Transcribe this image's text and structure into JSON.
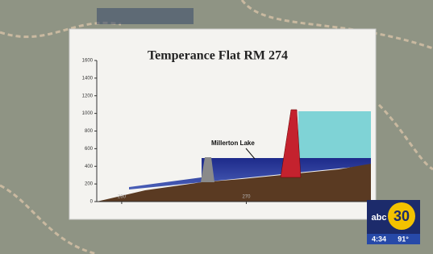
{
  "poster": {
    "title": "Temperance Flat RM 274",
    "annotation": "Millerton Lake",
    "yticks": [
      0,
      200,
      400,
      600,
      800,
      1000,
      1200,
      1400,
      1600
    ],
    "ylim": [
      0,
      1600
    ],
    "xticks": [
      260,
      270
    ],
    "xlim": [
      258,
      280
    ]
  },
  "overlay": {
    "network": "abc",
    "channel": "30",
    "time": "4:34",
    "temperature": "91°"
  }
}
